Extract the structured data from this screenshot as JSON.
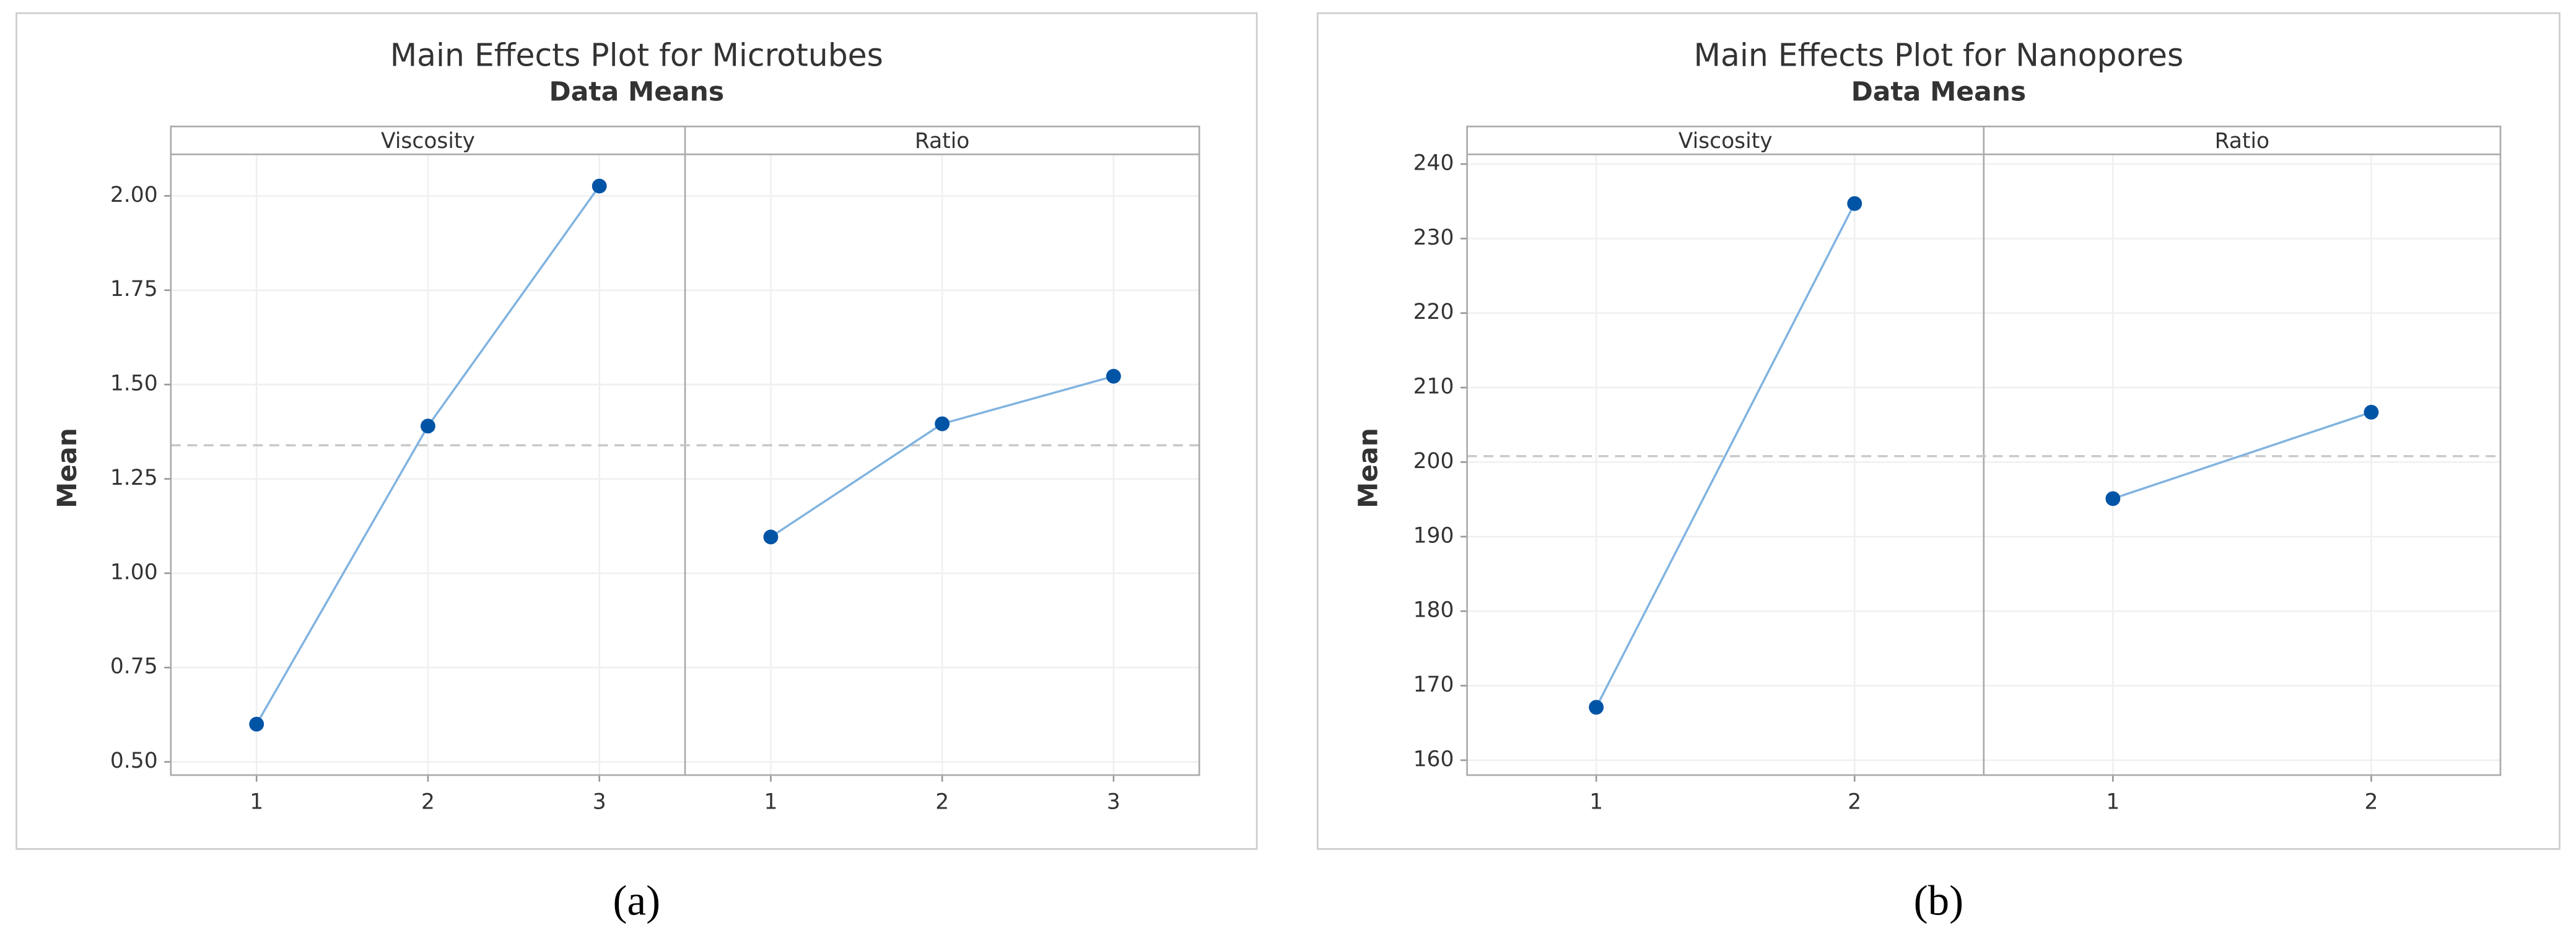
{
  "chart_data": [
    {
      "type": "line",
      "title": "Main Effects Plot for Microtubes",
      "subtitle": "Data Means",
      "y_label": "Mean",
      "panels": [
        {
          "name": "Viscosity",
          "categories": [
            "1",
            "2",
            "3"
          ],
          "values": [
            0.6,
            1.39,
            2.026
          ]
        },
        {
          "name": "Ratio",
          "categories": [
            "1",
            "2",
            "3"
          ],
          "values": [
            1.096,
            1.396,
            1.522
          ]
        }
      ],
      "reference": 1.339,
      "color": "#0054a6",
      "line_color": "#80b3e0",
      "ylim": [
        0.465,
        2.11
      ],
      "yticks": [
        {
          "value": 0.5,
          "label": "0.50"
        },
        {
          "value": 0.75,
          "label": "0.75"
        },
        {
          "value": 1,
          "label": "1.00"
        },
        {
          "value": 1.25,
          "label": "1.25"
        },
        {
          "value": 1.5,
          "label": "1.50"
        },
        {
          "value": 1.75,
          "label": "1.75"
        },
        {
          "value": 2,
          "label": "2.00"
        }
      ],
      "grid": true,
      "caption": "(a)"
    },
    {
      "type": "line",
      "title": "Main Effects Plot for Nanopores",
      "subtitle": "Data Means",
      "y_label": "Mean",
      "panels": [
        {
          "name": "Viscosity",
          "categories": [
            "1",
            "2"
          ],
          "values": [
            167.1,
            234.7
          ]
        },
        {
          "name": "Ratio",
          "categories": [
            "1",
            "2"
          ],
          "values": [
            195.1,
            206.7
          ]
        }
      ],
      "reference": 200.8,
      "color": "#0054a6",
      "line_color": "#80b3e0",
      "ylim": [
        158,
        241.3
      ],
      "yticks": [
        160,
        170,
        180,
        190,
        200,
        210,
        220,
        230,
        240
      ],
      "grid": true,
      "caption": "(b)"
    }
  ]
}
